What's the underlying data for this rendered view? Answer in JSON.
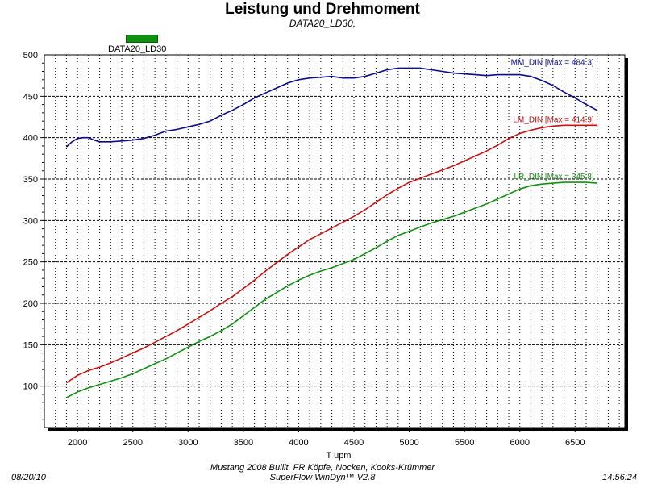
{
  "header": {
    "title": "Leistung und Drehmoment",
    "subtitle": "DATA20_LD30,"
  },
  "legend": {
    "label": "DATA20_LD30",
    "color": "#109010"
  },
  "footer": {
    "date": "08/20/10",
    "time": "14:56:24",
    "line1": "Mustang 2008 Bullit, FR Köpfe, Nocken, Kooks-Krümmer",
    "line2": "SuperFlow WinDyn™ V2.8"
  },
  "chart_data": {
    "type": "line",
    "title": "Leistung und Drehmoment",
    "subtitle": "DATA20_LD30,",
    "xlabel": "T    upm",
    "ylabel": "",
    "xlim": [
      1700,
      6950
    ],
    "ylim": [
      50,
      500
    ],
    "xticks": [
      2000,
      2500,
      3000,
      3500,
      4000,
      4500,
      5000,
      5500,
      6000,
      6500
    ],
    "yticks": [
      100,
      150,
      200,
      250,
      300,
      350,
      400,
      450,
      500
    ],
    "grid": true,
    "legend": "top-left",
    "series": [
      {
        "name": "MM_DIN",
        "label": "MM_DIN [Max = 484.3]",
        "color": "#0a0a8c",
        "x": [
          1900,
          1950,
          2000,
          2050,
          2100,
          2150,
          2200,
          2300,
          2400,
          2500,
          2600,
          2700,
          2800,
          2900,
          3000,
          3100,
          3200,
          3300,
          3400,
          3500,
          3600,
          3700,
          3800,
          3900,
          4000,
          4100,
          4200,
          4300,
          4400,
          4500,
          4600,
          4700,
          4800,
          4900,
          5000,
          5100,
          5200,
          5300,
          5400,
          5500,
          5600,
          5700,
          5800,
          5900,
          6000,
          6100,
          6200,
          6300,
          6400,
          6500,
          6600,
          6700
        ],
        "values": [
          389,
          395,
          399,
          400,
          400,
          397,
          395,
          395,
          396,
          397,
          399,
          403,
          408,
          410,
          413,
          416,
          420,
          427,
          433,
          440,
          448,
          454,
          460,
          466,
          470,
          472,
          473,
          474,
          472,
          472,
          474,
          478,
          482,
          484,
          484,
          484,
          482,
          480,
          478,
          477,
          476,
          475,
          476,
          476,
          476,
          474,
          469,
          463,
          455,
          448,
          440,
          433
        ]
      },
      {
        "name": "LM_DIN",
        "label": "LM_DIN [Max = 414.9]",
        "color": "#cc1010",
        "x": [
          1900,
          2000,
          2100,
          2200,
          2300,
          2400,
          2500,
          2600,
          2700,
          2800,
          2900,
          3000,
          3100,
          3200,
          3300,
          3400,
          3500,
          3600,
          3700,
          3800,
          3900,
          4000,
          4100,
          4200,
          4300,
          4400,
          4500,
          4600,
          4700,
          4800,
          4900,
          5000,
          5100,
          5200,
          5300,
          5400,
          5500,
          5600,
          5700,
          5800,
          5900,
          6000,
          6100,
          6200,
          6300,
          6400,
          6500,
          6600,
          6700
        ],
        "values": [
          104,
          113,
          119,
          123,
          128,
          134,
          140,
          146,
          153,
          160,
          167,
          175,
          183,
          191,
          200,
          208,
          218,
          228,
          239,
          249,
          259,
          268,
          277,
          284,
          291,
          298,
          305,
          313,
          322,
          331,
          339,
          346,
          351,
          356,
          361,
          366,
          372,
          378,
          384,
          391,
          399,
          405,
          409,
          412,
          414,
          415,
          415,
          415,
          415
        ]
      },
      {
        "name": "LR_DIN",
        "label": "LR_DIN [Max = 345.8]",
        "color": "#109010",
        "x": [
          1900,
          2000,
          2100,
          2200,
          2300,
          2400,
          2500,
          2600,
          2700,
          2800,
          2900,
          3000,
          3100,
          3200,
          3300,
          3400,
          3500,
          3600,
          3700,
          3800,
          3900,
          4000,
          4100,
          4200,
          4300,
          4400,
          4500,
          4600,
          4700,
          4800,
          4900,
          5000,
          5100,
          5200,
          5300,
          5400,
          5500,
          5600,
          5700,
          5800,
          5900,
          6000,
          6100,
          6200,
          6300,
          6400,
          6500,
          6600,
          6700
        ],
        "values": [
          86,
          93,
          98,
          102,
          106,
          110,
          115,
          121,
          127,
          133,
          140,
          147,
          154,
          160,
          167,
          175,
          185,
          195,
          205,
          213,
          221,
          228,
          234,
          239,
          243,
          248,
          253,
          260,
          267,
          275,
          282,
          287,
          292,
          297,
          301,
          305,
          310,
          315,
          320,
          326,
          332,
          338,
          342,
          344,
          345,
          346,
          346,
          346,
          345
        ]
      }
    ]
  }
}
